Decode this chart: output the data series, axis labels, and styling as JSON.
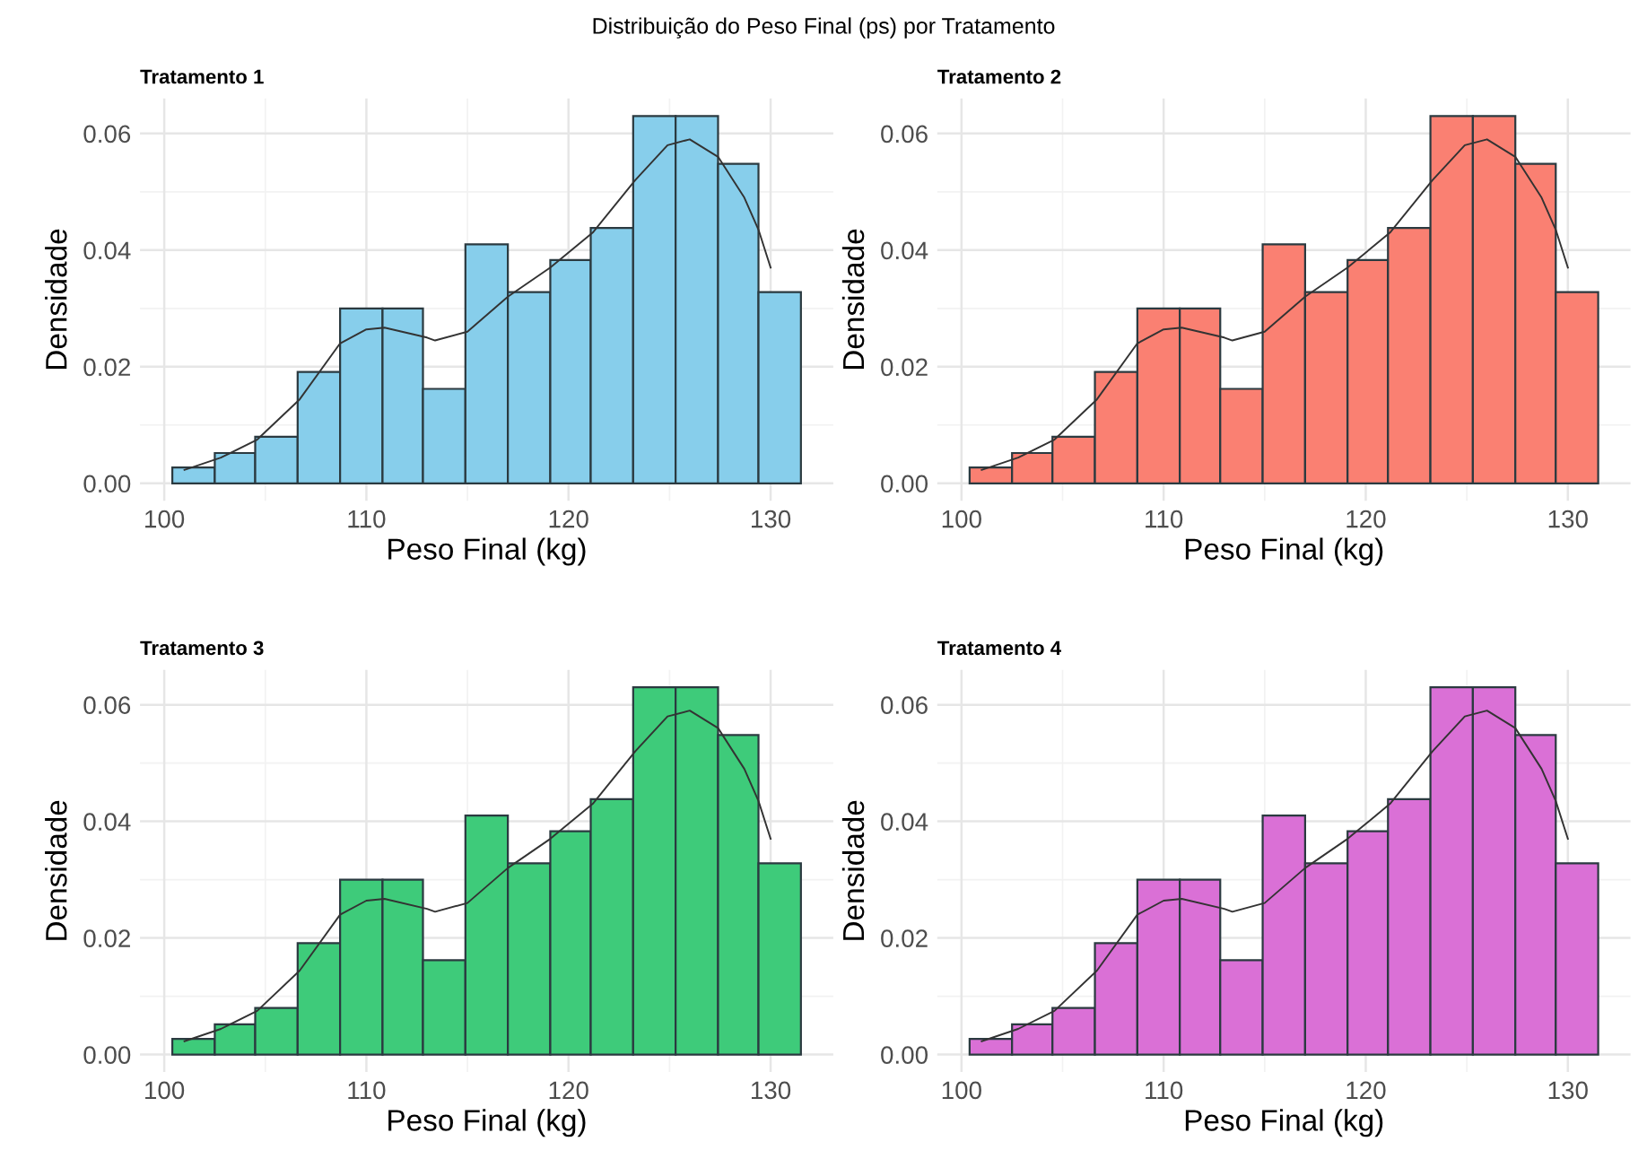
{
  "chart_data": [
    {
      "type": "histogram",
      "title": "Tratamento 1",
      "xlabel": "Peso Final (kg)",
      "ylabel": "Densidade",
      "annotations": [
        "Distribuição do Peso Final (ps) por Tratamento"
      ],
      "xlim": [
        98.8,
        133.1
      ],
      "ylim": [
        -0.003,
        0.066
      ],
      "xticks": [
        100,
        110,
        120,
        130
      ],
      "yticks": [
        {
          "value": 0,
          "label": "0.00"
        },
        {
          "value": 0.02,
          "label": "0.02"
        },
        {
          "value": 0.04,
          "label": "0.04"
        },
        {
          "value": 0.06,
          "label": "0.06"
        }
      ],
      "grid": true,
      "series": [
        {
          "color": "#87ceeb",
          "bins": [
            100.4,
            102.5,
            104.5,
            106.6,
            108.7,
            110.8,
            112.8,
            114.9,
            117.0,
            119.1,
            121.1,
            123.2,
            125.3,
            127.4,
            129.4,
            131.5
          ],
          "values": [
            0.0027,
            0.0052,
            0.008,
            0.0191,
            0.03,
            0.03,
            0.0162,
            0.041,
            0.0328,
            0.0383,
            0.0438,
            0.063,
            0.063,
            0.0548,
            0.0328
          ]
        },
        {
          "type": "line",
          "color": "#333333",
          "x": [
            101.0,
            102.8,
            104.6,
            106.7,
            108.7,
            110.0,
            110.9,
            113.0,
            113.4,
            115.0,
            117.0,
            119.1,
            121.2,
            123.3,
            124.9,
            126.0,
            127.4,
            128.7,
            129.4,
            130.0
          ],
          "values": [
            0.0023,
            0.0044,
            0.0075,
            0.0144,
            0.024,
            0.0264,
            0.0267,
            0.025,
            0.0245,
            0.026,
            0.032,
            0.037,
            0.043,
            0.052,
            0.058,
            0.059,
            0.056,
            0.049,
            0.0435,
            0.037
          ]
        }
      ]
    },
    {
      "type": "histogram",
      "title": "Tratamento 2",
      "xlabel": "Peso Final (kg)",
      "ylabel": "Densidade",
      "xlim": [
        98.8,
        133.1
      ],
      "ylim": [
        -0.003,
        0.066
      ],
      "xticks": [
        100,
        110,
        120,
        130
      ],
      "yticks": [
        {
          "value": 0,
          "label": "0.00"
        },
        {
          "value": 0.02,
          "label": "0.02"
        },
        {
          "value": 0.04,
          "label": "0.04"
        },
        {
          "value": 0.06,
          "label": "0.06"
        }
      ],
      "grid": true,
      "series": [
        {
          "color": "#fa8072",
          "bins": [
            100.4,
            102.5,
            104.5,
            106.6,
            108.7,
            110.8,
            112.8,
            114.9,
            117.0,
            119.1,
            121.1,
            123.2,
            125.3,
            127.4,
            129.4,
            131.5
          ],
          "values": [
            0.0027,
            0.0052,
            0.008,
            0.0191,
            0.03,
            0.03,
            0.0162,
            0.041,
            0.0328,
            0.0383,
            0.0438,
            0.063,
            0.063,
            0.0548,
            0.0328
          ]
        },
        {
          "type": "line",
          "color": "#333333",
          "x": [
            101.0,
            102.8,
            104.6,
            106.7,
            108.7,
            110.0,
            110.9,
            113.0,
            113.4,
            115.0,
            117.0,
            119.1,
            121.2,
            123.3,
            124.9,
            126.0,
            127.4,
            128.7,
            129.4,
            130.0
          ],
          "values": [
            0.0023,
            0.0044,
            0.0075,
            0.0144,
            0.024,
            0.0264,
            0.0267,
            0.025,
            0.0245,
            0.026,
            0.032,
            0.037,
            0.043,
            0.052,
            0.058,
            0.059,
            0.056,
            0.049,
            0.0435,
            0.037
          ]
        }
      ]
    },
    {
      "type": "histogram",
      "title": "Tratamento 3",
      "xlabel": "Peso Final (kg)",
      "ylabel": "Densidade",
      "xlim": [
        98.8,
        133.1
      ],
      "ylim": [
        -0.003,
        0.066
      ],
      "xticks": [
        100,
        110,
        120,
        130
      ],
      "yticks": [
        {
          "value": 0,
          "label": "0.00"
        },
        {
          "value": 0.02,
          "label": "0.02"
        },
        {
          "value": 0.04,
          "label": "0.04"
        },
        {
          "value": 0.06,
          "label": "0.06"
        }
      ],
      "grid": true,
      "series": [
        {
          "color": "#3ecb7a",
          "bins": [
            100.4,
            102.5,
            104.5,
            106.6,
            108.7,
            110.8,
            112.8,
            114.9,
            117.0,
            119.1,
            121.1,
            123.2,
            125.3,
            127.4,
            129.4,
            131.5
          ],
          "values": [
            0.0027,
            0.0052,
            0.008,
            0.0191,
            0.03,
            0.03,
            0.0162,
            0.041,
            0.0328,
            0.0383,
            0.0438,
            0.063,
            0.063,
            0.0548,
            0.0328
          ]
        },
        {
          "type": "line",
          "color": "#333333",
          "x": [
            101.0,
            102.8,
            104.6,
            106.7,
            108.7,
            110.0,
            110.9,
            113.0,
            113.4,
            115.0,
            117.0,
            119.1,
            121.2,
            123.3,
            124.9,
            126.0,
            127.4,
            128.7,
            129.4,
            130.0
          ],
          "values": [
            0.0023,
            0.0044,
            0.0075,
            0.0144,
            0.024,
            0.0264,
            0.0267,
            0.025,
            0.0245,
            0.026,
            0.032,
            0.037,
            0.043,
            0.052,
            0.058,
            0.059,
            0.056,
            0.049,
            0.0435,
            0.037
          ]
        }
      ]
    },
    {
      "type": "histogram",
      "title": "Tratamento 4",
      "xlabel": "Peso Final (kg)",
      "ylabel": "Densidade",
      "xlim": [
        98.8,
        133.1
      ],
      "ylim": [
        -0.003,
        0.066
      ],
      "xticks": [
        100,
        110,
        120,
        130
      ],
      "yticks": [
        {
          "value": 0,
          "label": "0.00"
        },
        {
          "value": 0.02,
          "label": "0.02"
        },
        {
          "value": 0.04,
          "label": "0.04"
        },
        {
          "value": 0.06,
          "label": "0.06"
        }
      ],
      "grid": true,
      "series": [
        {
          "color": "#da70d6",
          "bins": [
            100.4,
            102.5,
            104.5,
            106.6,
            108.7,
            110.8,
            112.8,
            114.9,
            117.0,
            119.1,
            121.1,
            123.2,
            125.3,
            127.4,
            129.4,
            131.5
          ],
          "values": [
            0.0027,
            0.0052,
            0.008,
            0.0191,
            0.03,
            0.03,
            0.0162,
            0.041,
            0.0328,
            0.0383,
            0.0438,
            0.063,
            0.063,
            0.0548,
            0.0328
          ]
        },
        {
          "type": "line",
          "color": "#333333",
          "x": [
            101.0,
            102.8,
            104.6,
            106.7,
            108.7,
            110.0,
            110.9,
            113.0,
            113.4,
            115.0,
            117.0,
            119.1,
            121.2,
            123.3,
            124.9,
            126.0,
            127.4,
            128.7,
            129.4,
            130.0
          ],
          "values": [
            0.0023,
            0.0044,
            0.0075,
            0.0144,
            0.024,
            0.0264,
            0.0267,
            0.025,
            0.0245,
            0.026,
            0.032,
            0.037,
            0.043,
            0.052,
            0.058,
            0.059,
            0.056,
            0.049,
            0.0435,
            0.037
          ]
        }
      ]
    }
  ]
}
